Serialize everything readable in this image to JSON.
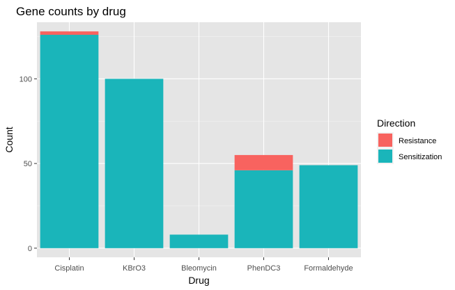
{
  "chart_data": {
    "type": "bar",
    "stacked": true,
    "title": "Gene counts by drug",
    "xlabel": "Drug",
    "ylabel": "Count",
    "categories": [
      "Cisplatin",
      "KBrO3",
      "Bleomycin",
      "PhenDC3",
      "Formaldehyde"
    ],
    "series": [
      {
        "name": "Sensitization",
        "values": [
          126,
          100,
          8,
          46,
          49
        ],
        "color": "#1ab5ba"
      },
      {
        "name": "Resistance",
        "values": [
          2,
          0,
          0,
          9,
          0
        ],
        "color": "#f8635f"
      }
    ],
    "ylim": [
      -5.4,
      133.4
    ],
    "yticks": [
      0,
      50,
      100
    ],
    "grid": true,
    "legend": {
      "title": "Direction",
      "position": "right",
      "order": [
        "Resistance",
        "Sensitization"
      ]
    }
  }
}
